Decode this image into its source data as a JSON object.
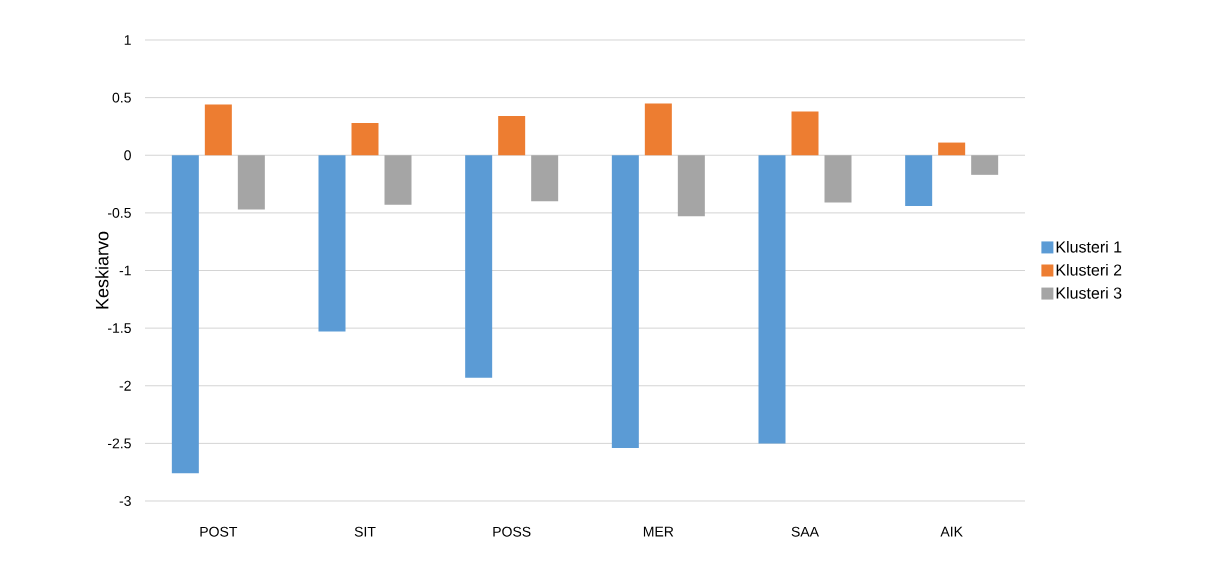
{
  "chart_data": {
    "type": "bar",
    "ylabel": "Keskiarvo",
    "categories": [
      "POST",
      "SIT",
      "POSS",
      "MER",
      "SAA",
      "AIK"
    ],
    "series": [
      {
        "name": "Klusteri 1",
        "color": "#5b9bd5",
        "values": [
          -2.76,
          -1.53,
          -1.93,
          -2.54,
          -2.5,
          -0.44
        ]
      },
      {
        "name": "Klusteri 2",
        "color": "#ed7d31",
        "values": [
          0.44,
          0.28,
          0.34,
          0.45,
          0.38,
          0.11
        ]
      },
      {
        "name": "Klusteri 3",
        "color": "#a5a5a5",
        "values": [
          -0.47,
          -0.43,
          -0.4,
          -0.53,
          -0.41,
          -0.17
        ]
      }
    ],
    "ylim": [
      -3,
      1
    ],
    "yticks": [
      -3,
      -2.5,
      -2,
      -1.5,
      -1,
      -0.5,
      0,
      0.5,
      1
    ],
    "grid": "y",
    "legend": "right"
  }
}
